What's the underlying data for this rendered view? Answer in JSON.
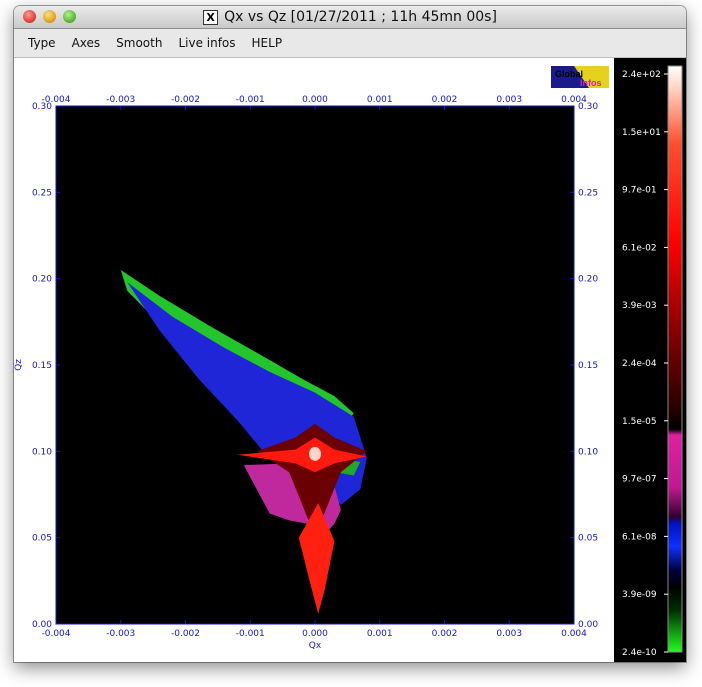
{
  "window": {
    "title": "Qx vs Qz [01/27/2011 ; 11h 45mn 00s]",
    "x_glyph": "X"
  },
  "menu": [
    "Type",
    "Axes",
    "Smooth",
    "Live infos",
    "HELP"
  ],
  "logo": {
    "line1": "Global",
    "line2": "Infos"
  },
  "colors": {
    "axis": "#1515d6",
    "plot_background": "#000000",
    "colorbar_background": "#000000"
  },
  "chart_data": {
    "type": "heatmap",
    "title": "",
    "xlabel": "Qx",
    "ylabel": "Qz",
    "xlim": [
      -0.004,
      0.004
    ],
    "ylim": [
      0.0,
      0.3
    ],
    "x_ticks": [
      "-0.004",
      "-0.003",
      "-0.002",
      "-0.001",
      "0.000",
      "0.001",
      "0.002",
      "0.003",
      "0.004"
    ],
    "y_ticks": [
      "0.00",
      "0.05",
      "0.10",
      "0.15",
      "0.20",
      "0.25",
      "0.30"
    ],
    "x_tick_values": [
      -0.004,
      -0.003,
      -0.002,
      -0.001,
      0.0,
      0.001,
      0.002,
      0.003,
      0.004
    ],
    "y_tick_values": [
      0.0,
      0.05,
      0.1,
      0.15,
      0.2,
      0.25,
      0.3
    ],
    "colorbar": {
      "scale": "log",
      "labels": [
        "2.4e+02",
        "1.5e+01",
        "9.7e-01",
        "6.1e-02",
        "3.9e-03",
        "2.4e-04",
        "1.5e-05",
        "9.7e-07",
        "6.1e-08",
        "3.9e-09",
        "2.4e-10"
      ],
      "max": 240,
      "min": 2.4e-10
    },
    "regions": [
      {
        "name": "green-outer",
        "color": "#22c52a",
        "points": [
          [
            -0.003,
            0.205
          ],
          [
            -0.0024,
            0.19
          ],
          [
            -0.0016,
            0.172
          ],
          [
            -0.0008,
            0.155
          ],
          [
            -0.0002,
            0.142
          ],
          [
            0.0003,
            0.132
          ],
          [
            0.0006,
            0.122
          ],
          [
            0.0005,
            0.117
          ],
          [
            -0.0001,
            0.126
          ],
          [
            -0.0008,
            0.138
          ],
          [
            -0.0016,
            0.155
          ],
          [
            -0.0024,
            0.174
          ],
          [
            -0.0029,
            0.193
          ]
        ]
      },
      {
        "name": "blue-band",
        "color": "#1f26d8",
        "points": [
          [
            -0.0029,
            0.198
          ],
          [
            -0.0022,
            0.178
          ],
          [
            -0.0014,
            0.16
          ],
          [
            -0.0007,
            0.146
          ],
          [
            0.0,
            0.134
          ],
          [
            0.0006,
            0.12
          ],
          [
            0.0007,
            0.108
          ],
          [
            0.0008,
            0.096
          ],
          [
            0.0007,
            0.078
          ],
          [
            0.0004,
            0.069
          ],
          [
            0.0002,
            0.078
          ],
          [
            -0.0002,
            0.093
          ],
          [
            -0.0008,
            0.1
          ],
          [
            -0.0012,
            0.118
          ],
          [
            -0.0018,
            0.142
          ],
          [
            -0.0024,
            0.17
          ]
        ]
      },
      {
        "name": "green-inner-lower",
        "color": "#1fa82a",
        "points": [
          [
            -0.0004,
            0.098
          ],
          [
            0.0002,
            0.096
          ],
          [
            0.0007,
            0.094
          ],
          [
            0.0006,
            0.086
          ],
          [
            0.0003,
            0.088
          ],
          [
            -0.0002,
            0.09
          ]
        ]
      },
      {
        "name": "magenta-lower",
        "color": "#c0289e",
        "points": [
          [
            -0.0011,
            0.092
          ],
          [
            -0.0004,
            0.093
          ],
          [
            0.0,
            0.09
          ],
          [
            0.0003,
            0.08
          ],
          [
            0.0004,
            0.066
          ],
          [
            0.0003,
            0.058
          ],
          [
            0.0001,
            0.05
          ],
          [
            -0.0001,
            0.058
          ],
          [
            -0.0004,
            0.06
          ],
          [
            -0.0007,
            0.064
          ],
          [
            -0.0009,
            0.078
          ]
        ]
      },
      {
        "name": "dark-red-core",
        "color": "#6a0000",
        "points": [
          [
            -0.0009,
            0.1
          ],
          [
            -0.0003,
            0.108
          ],
          [
            0.0,
            0.116
          ],
          [
            0.0003,
            0.108
          ],
          [
            0.0008,
            0.1
          ],
          [
            0.0004,
            0.088
          ],
          [
            0.0001,
            0.06
          ],
          [
            5e-05,
            0.01
          ],
          [
            -0.0001,
            0.06
          ],
          [
            -0.0004,
            0.088
          ]
        ]
      },
      {
        "name": "red-streak",
        "color": "#ff1a10",
        "points": [
          [
            -0.0012,
            0.098
          ],
          [
            -0.0003,
            0.101
          ],
          [
            0.0,
            0.108
          ],
          [
            0.0003,
            0.101
          ],
          [
            0.0008,
            0.097
          ],
          [
            0.0003,
            0.093
          ],
          [
            0.0,
            0.088
          ],
          [
            -0.0003,
            0.093
          ]
        ]
      },
      {
        "name": "red-tail",
        "color": "#ff2010",
        "points": [
          [
            -0.00025,
            0.05
          ],
          [
            5e-05,
            0.07
          ],
          [
            0.0003,
            0.048
          ],
          [
            0.00015,
            0.02
          ],
          [
            5e-05,
            0.006
          ],
          [
            -5e-05,
            0.02
          ]
        ]
      }
    ],
    "peak": {
      "x": 0.0,
      "y": 0.0985,
      "color": "#ffd7c7"
    }
  }
}
